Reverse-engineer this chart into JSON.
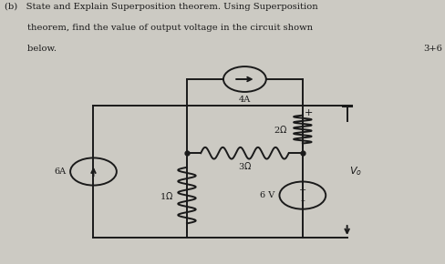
{
  "bg_color": "#cccac3",
  "text_color": "#1a1a1a",
  "title_line1": "(b)   State and Explain Superposition theorem. Using Superposition",
  "title_line2": "        theorem, find the value of output voltage in the circuit shown",
  "title_line3": "        below.",
  "marks": "3+6",
  "font_family": "DejaVu Serif",
  "xl": 0.21,
  "xm": 0.42,
  "xr": 0.68,
  "xvo": 0.78,
  "yt": 0.6,
  "ym": 0.42,
  "yb": 0.1,
  "cs4_r": 0.048,
  "cs6_r": 0.052,
  "vs6_r": 0.052,
  "lw": 1.4
}
